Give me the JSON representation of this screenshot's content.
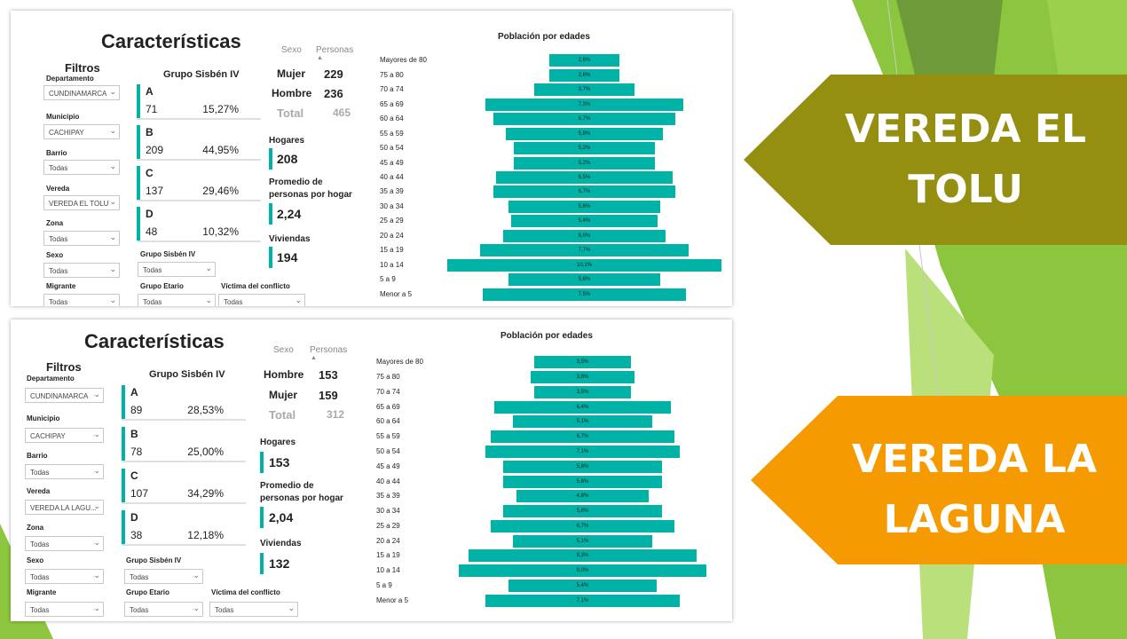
{
  "colors": {
    "teal": "#00b3a6",
    "arrow_green": "#948f10",
    "arrow_orange": "#f59a00"
  },
  "panels": [
    {
      "title": "Características",
      "filters_heading": "Filtros",
      "filters": [
        {
          "label": "Departamento",
          "value": "CUNDINAMARCA"
        },
        {
          "label": "Municipio",
          "value": "CACHIPAY"
        },
        {
          "label": "Barrio",
          "value": "Todas"
        },
        {
          "label": "Vereda",
          "value": "VEREDA EL TOLU"
        },
        {
          "label": "Zona",
          "value": "Todas"
        },
        {
          "label": "Sexo",
          "value": "Todas"
        },
        {
          "label": "Migrante",
          "value": "Todas"
        }
      ],
      "sisben_heading": "Grupo Sisbén IV",
      "sisben": [
        {
          "letter": "A",
          "count": "71",
          "pct": "15,27%"
        },
        {
          "letter": "B",
          "count": "209",
          "pct": "44,95%"
        },
        {
          "letter": "C",
          "count": "137",
          "pct": "29,46%"
        },
        {
          "letter": "D",
          "count": "48",
          "pct": "10,32%"
        }
      ],
      "bottom_filters": [
        {
          "label": "Grupo Sisbén IV",
          "value": "Todas"
        },
        {
          "label": "Grupo Etario",
          "value": "Todas"
        },
        {
          "label": "Víctima del conflicto",
          "value": "Todas"
        }
      ],
      "sex_col_header": "Sexo",
      "persons_col_header": "Personas",
      "sex_rows": [
        {
          "label": "Mujer",
          "value": "229"
        },
        {
          "label": "Hombre",
          "value": "236"
        }
      ],
      "total": {
        "label": "Total",
        "value": "465"
      },
      "kpis": [
        {
          "label": "Hogares",
          "value": "208"
        },
        {
          "label": "Promedio de personas por hogar",
          "value": "2,24"
        },
        {
          "label": "Viviendas",
          "value": "194"
        }
      ],
      "chart_data": {
        "type": "bar",
        "orientation": "horizontal-centered",
        "title": "Población por edades",
        "categories": [
          "Mayores de 80",
          "75 a 80",
          "70 a 74",
          "65 a 69",
          "60 a 64",
          "55 a 59",
          "50 a 54",
          "45 a 49",
          "40 a 44",
          "35 a 39",
          "30 a 34",
          "25 a 29",
          "20 a 24",
          "15 a 19",
          "10 a 14",
          "5 a 9",
          "Menor a 5"
        ],
        "values": [
          2.6,
          2.6,
          3.7,
          7.3,
          6.7,
          5.8,
          5.2,
          5.2,
          6.5,
          6.7,
          5.6,
          5.4,
          6.0,
          7.7,
          10.1,
          5.6,
          7.5
        ],
        "labels": [
          "2,6%",
          "2,6%",
          "3,7%",
          "7,3%",
          "6,7%",
          "5,8%",
          "5,2%",
          "5,2%",
          "6,5%",
          "6,7%",
          "5,6%",
          "5,4%",
          "6,0%",
          "7,7%",
          "10,1%",
          "5,6%",
          "7,5%"
        ]
      }
    },
    {
      "title": "Características",
      "filters_heading": "Filtros",
      "filters": [
        {
          "label": "Departamento",
          "value": "CUNDINAMARCA"
        },
        {
          "label": "Municipio",
          "value": "CACHIPAY"
        },
        {
          "label": "Barrio",
          "value": "Todas"
        },
        {
          "label": "Vereda",
          "value": "VEREDA LA LAGU..."
        },
        {
          "label": "Zona",
          "value": "Todas"
        },
        {
          "label": "Sexo",
          "value": "Todas"
        },
        {
          "label": "Migrante",
          "value": "Todas"
        }
      ],
      "sisben_heading": "Grupo Sisbén IV",
      "sisben": [
        {
          "letter": "A",
          "count": "89",
          "pct": "28,53%"
        },
        {
          "letter": "B",
          "count": "78",
          "pct": "25,00%"
        },
        {
          "letter": "C",
          "count": "107",
          "pct": "34,29%"
        },
        {
          "letter": "D",
          "count": "38",
          "pct": "12,18%"
        }
      ],
      "bottom_filters": [
        {
          "label": "Grupo Sisbén IV",
          "value": "Todas"
        },
        {
          "label": "Grupo Etario",
          "value": "Todas"
        },
        {
          "label": "Víctima del conflicto",
          "value": "Todas"
        }
      ],
      "sex_col_header": "Sexo",
      "persons_col_header": "Personas",
      "sex_rows": [
        {
          "label": "Hombre",
          "value": "153"
        },
        {
          "label": "Mujer",
          "value": "159"
        }
      ],
      "total": {
        "label": "Total",
        "value": "312"
      },
      "kpis": [
        {
          "label": "Hogares",
          "value": "153"
        },
        {
          "label": "Promedio de personas por hogar",
          "value": "2,04"
        },
        {
          "label": "Viviendas",
          "value": "132"
        }
      ],
      "chart_data": {
        "type": "bar",
        "orientation": "horizontal-centered",
        "title": "Población por edades",
        "categories": [
          "Mayores de 80",
          "75 a 80",
          "70 a 74",
          "65 a 69",
          "60 a 64",
          "55 a 59",
          "50 a 54",
          "45 a 49",
          "40 a 44",
          "35 a 39",
          "30 a 34",
          "25 a 29",
          "20 a 24",
          "15 a 19",
          "10 a 14",
          "5 a 9",
          "Menor a 5"
        ],
        "values": [
          3.5,
          3.8,
          3.5,
          6.4,
          5.1,
          6.7,
          7.1,
          5.8,
          5.8,
          4.8,
          5.8,
          6.7,
          5.1,
          8.3,
          9.0,
          5.4,
          7.1
        ],
        "labels": [
          "3,5%",
          "3,8%",
          "3,5%",
          "6,4%",
          "5,1%",
          "6,7%",
          "7,1%",
          "5,8%",
          "5,8%",
          "4,8%",
          "5,8%",
          "6,7%",
          "5,1%",
          "8,3%",
          "9,0%",
          "5,4%",
          "7,1%"
        ]
      }
    }
  ],
  "arrows": [
    {
      "text": "VEREDA EL TOLU"
    },
    {
      "text": "VEREDA LA LAGUNA"
    }
  ]
}
